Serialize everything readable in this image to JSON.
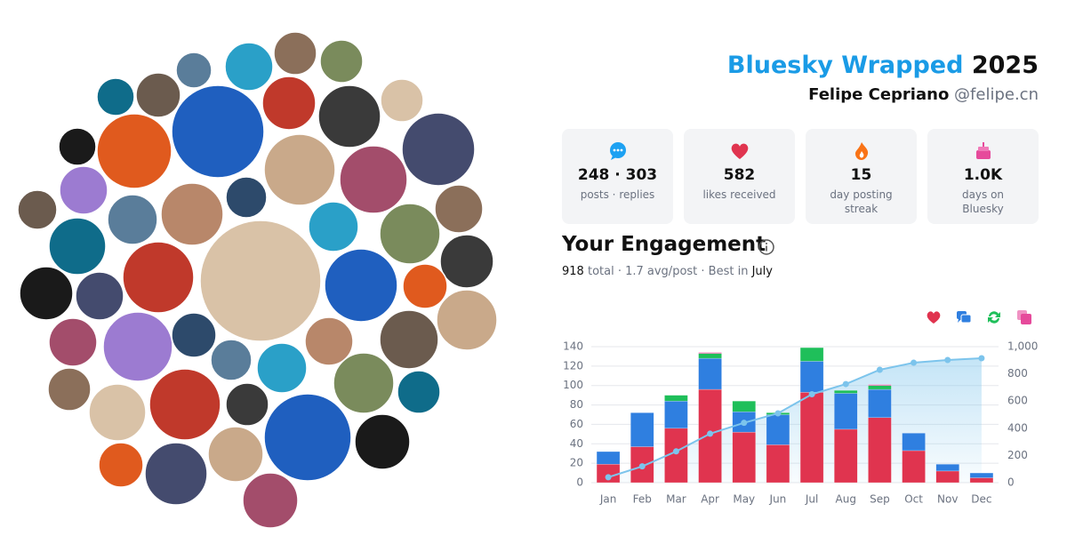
{
  "header": {
    "title": "Bluesky Wrapped",
    "year": "2025",
    "name": "Felipe Cepriano",
    "handle": "@felipe.cn"
  },
  "stats": [
    {
      "value": "248 · 303",
      "label": "posts · replies"
    },
    {
      "value": "582",
      "label": "likes received"
    },
    {
      "value": "15",
      "label": "day posting streak"
    },
    {
      "value": "1.0K",
      "label": "days on Bluesky"
    }
  ],
  "engagement": {
    "title": "Your Engagement",
    "total": "918",
    "summary": "total · 1.7 avg/post · Best in",
    "best_month": "July"
  },
  "chart_data": {
    "type": "bar",
    "stacked": true,
    "grid": true,
    "categories": [
      "Jan",
      "Feb",
      "Mar",
      "Apr",
      "May",
      "Jun",
      "Jul",
      "Aug",
      "Sep",
      "Oct",
      "Nov",
      "Dec"
    ],
    "series": [
      {
        "color": "#e0344f",
        "values": [
          19,
          37,
          56,
          96,
          52,
          39,
          93,
          55,
          67,
          33,
          12,
          5
        ]
      },
      {
        "color": "#2f7fe0",
        "values": [
          13,
          35,
          28,
          32,
          21,
          31,
          32,
          37,
          29,
          18,
          7,
          5
        ]
      },
      {
        "color": "#1fbf5a",
        "values": [
          0,
          0,
          6,
          5,
          11,
          2,
          14,
          3,
          4,
          0,
          0,
          0
        ]
      },
      {
        "color": "#e64a9b",
        "values": [
          0,
          0,
          0,
          1,
          0,
          0,
          0,
          0,
          1,
          0,
          0,
          0
        ]
      },
      {
        "type": "line",
        "axis": "y2",
        "color": "#7cc4ec",
        "values": [
          40,
          120,
          230,
          360,
          440,
          510,
          650,
          725,
          830,
          882,
          902,
          915
        ]
      }
    ],
    "ylim": [
      0,
      140
    ],
    "yticks": [
      0,
      20,
      40,
      60,
      80,
      100,
      120,
      140
    ],
    "y2lim": [
      0,
      1000
    ],
    "y2ticks": [
      0,
      200,
      400,
      600,
      800,
      {
        "value": 1000,
        "label": "1,000"
      }
    ]
  }
}
